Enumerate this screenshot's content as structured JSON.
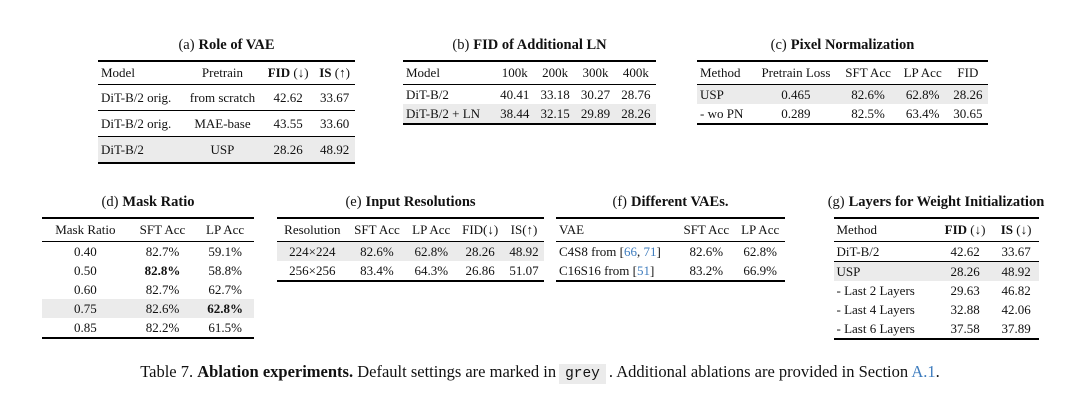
{
  "colors": {
    "row_highlight": "#ebebeb",
    "link_blue": "#3e7cbe"
  },
  "tables": {
    "a": {
      "label": "(a)",
      "title": "Role of VAE",
      "h": [
        "Model",
        "Pretrain"
      ],
      "h_fid": {
        "b": "FID",
        "r": " (↓)"
      },
      "h_is": {
        "b": "IS",
        "r": " (↑)"
      },
      "rows": [
        [
          "DiT-B/2 orig.",
          "from scratch",
          "42.62",
          "33.67"
        ],
        [
          "DiT-B/2 orig.",
          "MAE-base",
          "43.55",
          "33.60"
        ],
        [
          "DiT-B/2",
          "USP",
          "28.26",
          "48.92"
        ]
      ]
    },
    "b": {
      "label": "(b)",
      "title": "FID of Additional LN",
      "h": [
        "Model",
        "100k",
        "200k",
        "300k",
        "400k"
      ],
      "rows": [
        [
          "DiT-B/2",
          "40.41",
          "33.18",
          "30.27",
          "28.76"
        ],
        [
          "DiT-B/2 + LN",
          "38.44",
          "32.15",
          "29.89",
          "28.26"
        ]
      ]
    },
    "c": {
      "label": "(c)",
      "title": "Pixel Normalization",
      "h": [
        "Method",
        "Pretrain Loss",
        "SFT Acc",
        "LP Acc",
        "FID"
      ],
      "rows": [
        [
          "USP",
          "0.465",
          "82.6%",
          "62.8%",
          "28.26"
        ],
        [
          "- wo PN",
          "0.289",
          "82.5%",
          "63.4%",
          "30.65"
        ]
      ]
    },
    "d": {
      "label": "(d)",
      "title": "Mask Ratio",
      "h": [
        "Mask Ratio",
        "SFT Acc",
        "LP Acc"
      ],
      "rows": [
        [
          "0.40",
          "82.7%",
          "59.1%"
        ],
        [
          "0.50",
          "82.8%",
          "58.8%"
        ],
        [
          "0.60",
          "82.7%",
          "62.7%"
        ],
        [
          "0.75",
          "82.6%",
          "62.8%"
        ],
        [
          "0.85",
          "82.2%",
          "61.5%"
        ]
      ]
    },
    "e": {
      "label": "(e)",
      "title": "Input Resolutions",
      "h": [
        "Resolution",
        "SFT Acc",
        "LP Acc",
        "FID(↓)",
        "IS(↑)"
      ],
      "rows": [
        [
          "224×224",
          "82.6%",
          "62.8%",
          "28.26",
          "48.92"
        ],
        [
          "256×256",
          "83.4%",
          "64.3%",
          "26.86",
          "51.07"
        ]
      ]
    },
    "f": {
      "label": "(f)",
      "title": "Different VAEs.",
      "h": [
        "VAE",
        "SFT Acc",
        "LP Acc"
      ],
      "rows": [
        {
          "pre": "C4S8 from [",
          "c1": "66",
          "sep": ", ",
          "c2": "71",
          "post": "]",
          "sft": "82.6%",
          "lp": "62.8%"
        },
        {
          "pre": "C16S16 from [",
          "c1": "51",
          "post": "]",
          "sft": "83.2%",
          "lp": "66.9%"
        }
      ]
    },
    "g": {
      "label": "(g)",
      "title": "Layers for Weight Initialization",
      "h0": "Method",
      "h_fid": {
        "b": "FID",
        "r": " (↓)"
      },
      "h_is": {
        "b": "IS",
        "r": " (↓)"
      },
      "rows": [
        [
          "DiT-B/2",
          "42.62",
          "33.67"
        ],
        [
          "USP",
          "28.26",
          "48.92"
        ],
        [
          "- Last 2 Layers",
          "29.63",
          "46.82"
        ],
        [
          "- Last 4 Layers",
          "32.88",
          "42.06"
        ],
        [
          "- Last 6 Layers",
          "37.58",
          "37.89"
        ]
      ]
    }
  },
  "caption": {
    "prefix": "Table 7. ",
    "bold": "Ablation experiments.",
    "mid": " Default settings are marked in",
    "grey_word": "grey",
    "after_grey": ". Additional ablations are provided in Section ",
    "link": "A.1",
    "end": "."
  }
}
